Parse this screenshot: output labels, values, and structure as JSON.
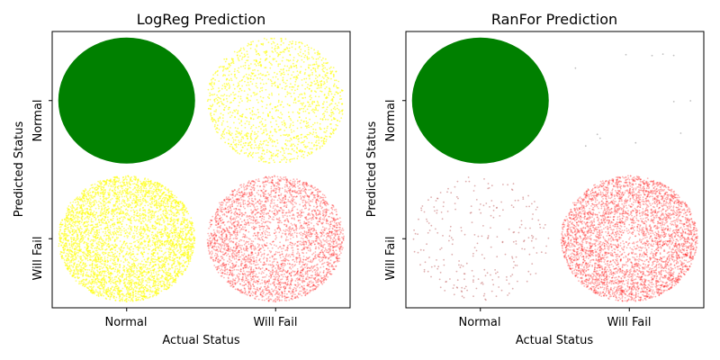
{
  "chart_data": [
    {
      "type": "scatter",
      "title": "LogReg Prediction",
      "xlabel": "Actual Status",
      "ylabel": "Predicted Status",
      "x_ticks": [
        "Normal",
        "Will Fail"
      ],
      "y_ticks": [
        "Normal",
        "Will Fail"
      ],
      "xlim": [
        -0.5,
        1.5
      ],
      "ylim": [
        -0.5,
        1.5
      ],
      "grid": false,
      "cells": [
        {
          "actual": "Normal",
          "predicted": "Normal",
          "color": "#008000",
          "opacity": 1.0,
          "relative_count": 20000
        },
        {
          "actual": "Will Fail",
          "predicted": "Normal",
          "color": "#ffff00",
          "opacity": 0.6,
          "relative_count": 1400
        },
        {
          "actual": "Normal",
          "predicted": "Will Fail",
          "color": "#ffff00",
          "opacity": 0.55,
          "relative_count": 5000
        },
        {
          "actual": "Will Fail",
          "predicted": "Will Fail",
          "color": "#ff0000",
          "opacity": 0.3,
          "relative_count": 3200
        }
      ]
    },
    {
      "type": "scatter",
      "title": "RanFor Prediction",
      "xlabel": "Actual Status",
      "ylabel": "Predicted Status",
      "x_ticks": [
        "Normal",
        "Will Fail"
      ],
      "y_ticks": [
        "Normal",
        "Will Fail"
      ],
      "xlim": [
        -0.5,
        1.5
      ],
      "ylim": [
        -0.5,
        1.5
      ],
      "grid": false,
      "cells": [
        {
          "actual": "Normal",
          "predicted": "Normal",
          "color": "#008000",
          "opacity": 1.0,
          "relative_count": 20000
        },
        {
          "actual": "Will Fail",
          "predicted": "Normal",
          "color": "#808080",
          "opacity": 0.5,
          "relative_count": 12
        },
        {
          "actual": "Normal",
          "predicted": "Will Fail",
          "color": "#c06060",
          "opacity": 0.5,
          "relative_count": 260
        },
        {
          "actual": "Will Fail",
          "predicted": "Will Fail",
          "color": "#ff0000",
          "opacity": 0.3,
          "relative_count": 4500
        }
      ]
    }
  ]
}
